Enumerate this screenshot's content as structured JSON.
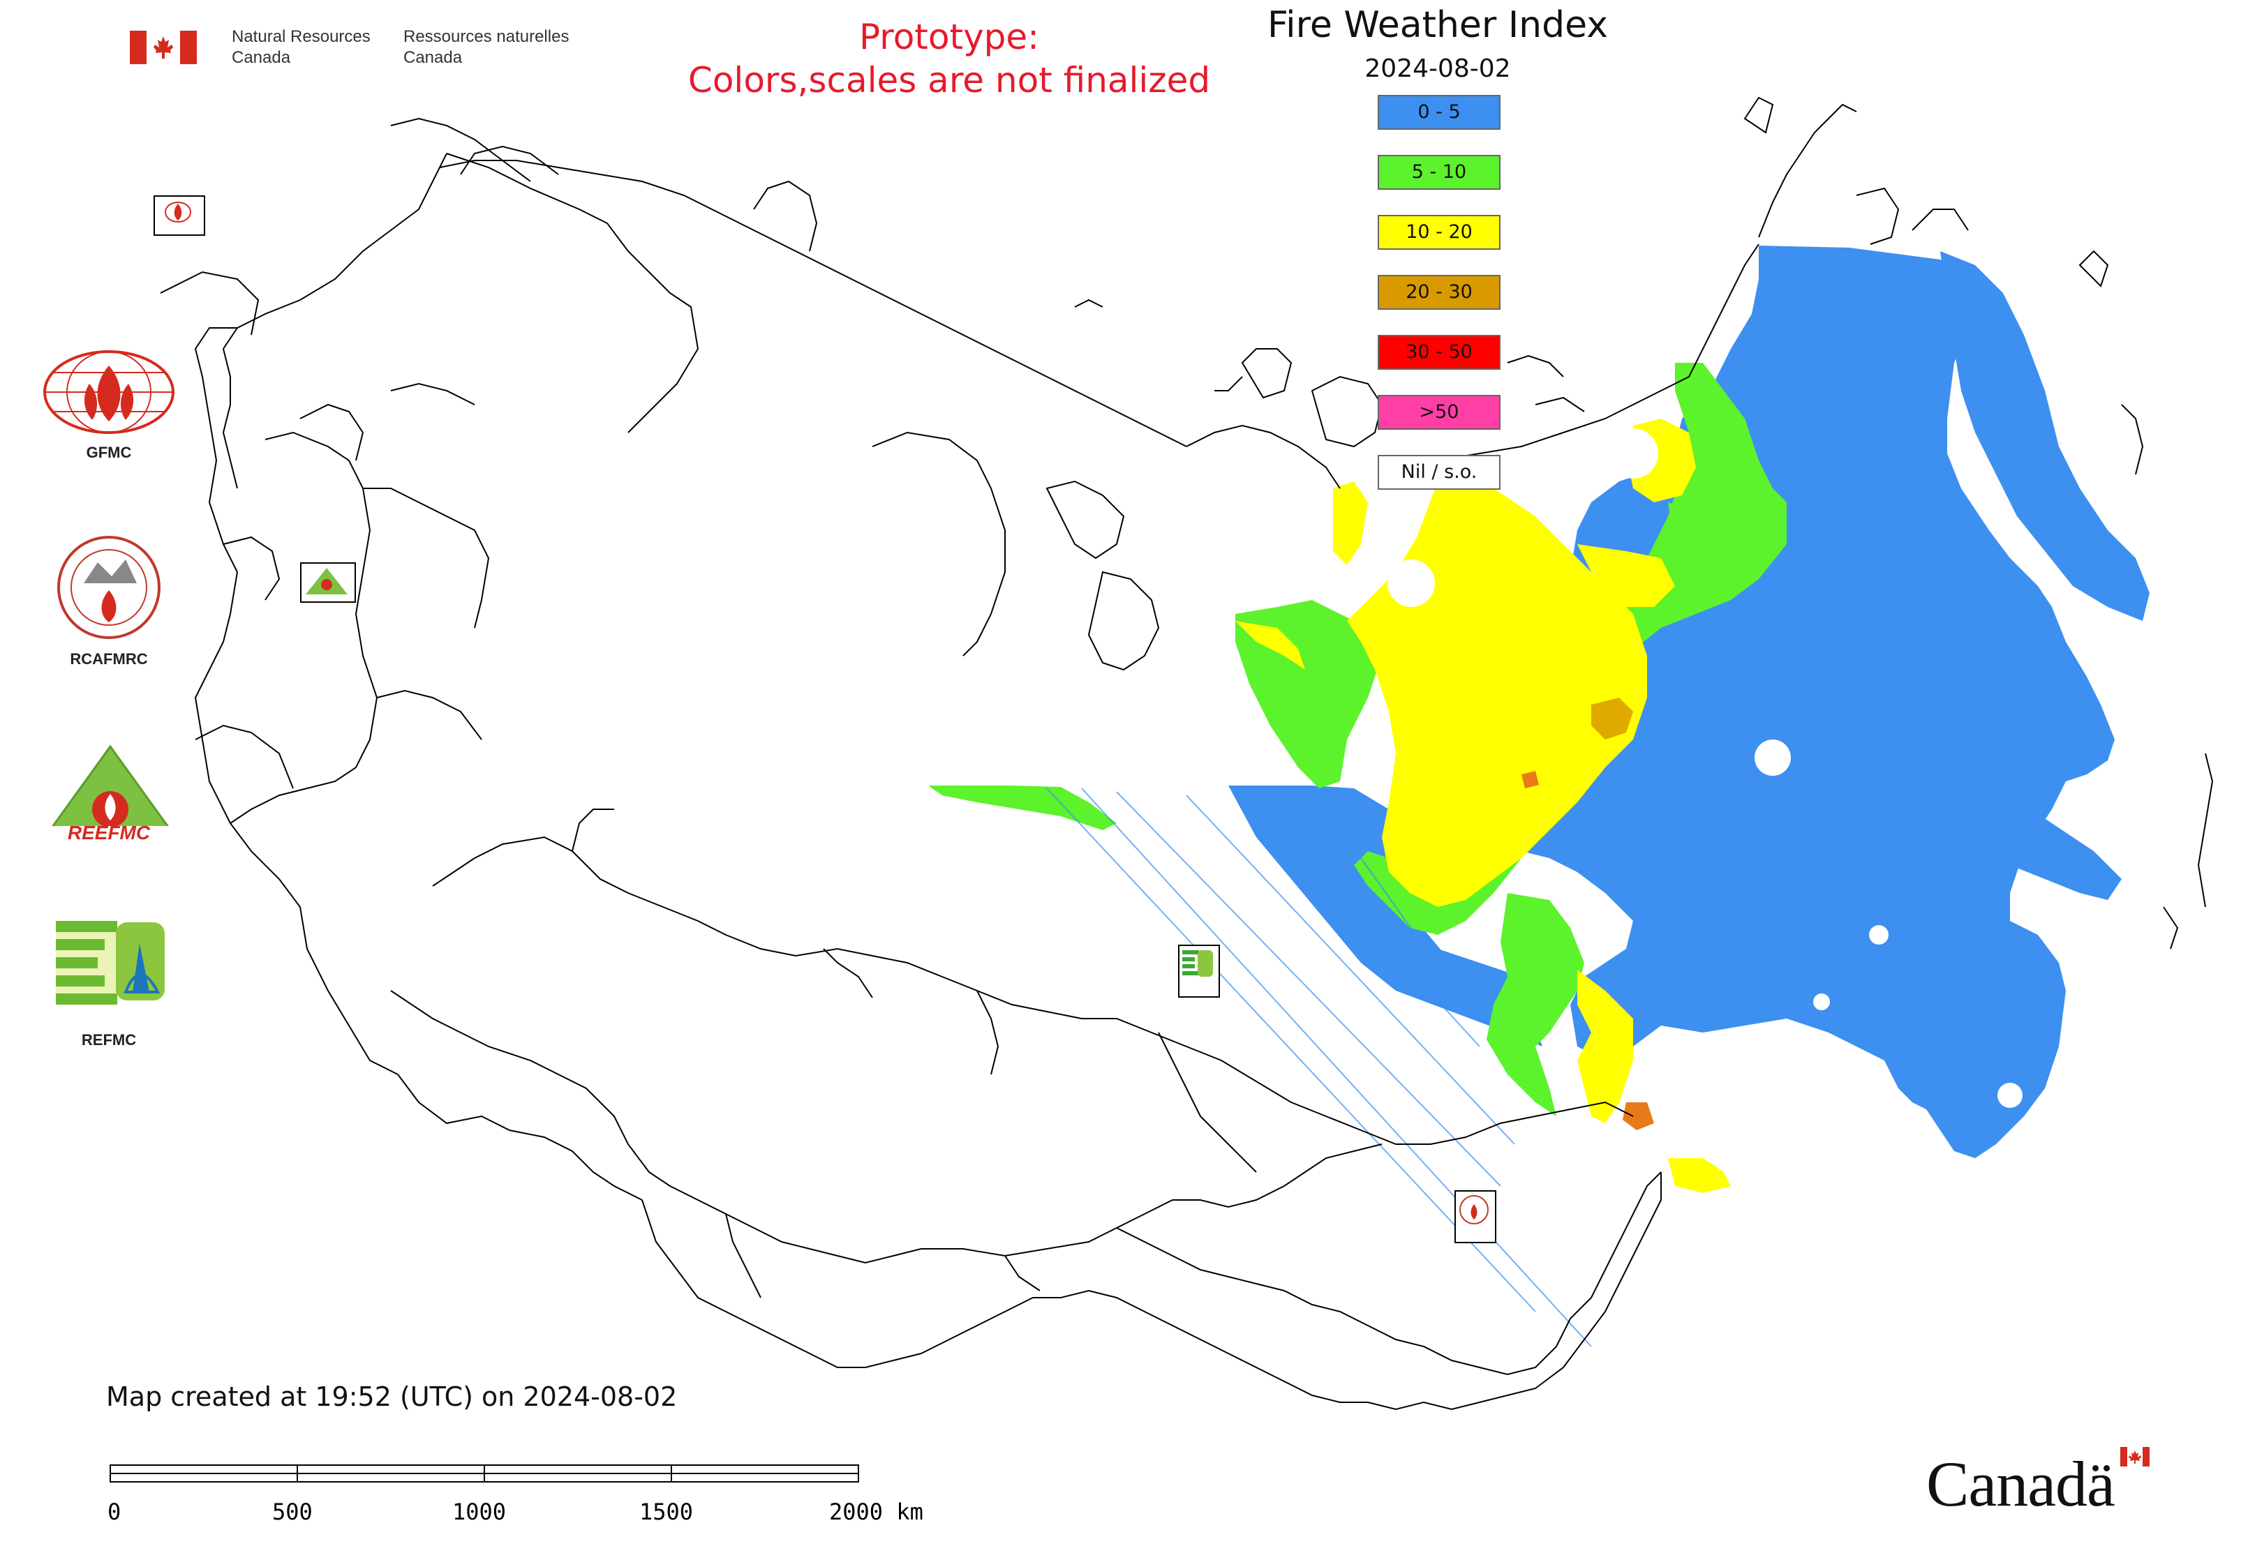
{
  "header": {
    "nrcan_en_line1": "Natural Resources",
    "nrcan_en_line2": "Canada",
    "nrcan_fr_line1": "Ressources naturelles",
    "nrcan_fr_line2": "Canada",
    "flag_color": "#d52b1e"
  },
  "prototype": {
    "line1": "Prototype:",
    "line2": "Colors,scales are not finalized",
    "color": "#e8192c"
  },
  "legend": {
    "title": "Fire Weather Index",
    "date": "2024-08-02",
    "items": [
      {
        "label": "0 - 5",
        "color": "#3d8ff0"
      },
      {
        "label": "5 - 10",
        "color": "#5cf22c"
      },
      {
        "label": "10 - 20",
        "color": "#ffff00"
      },
      {
        "label": "20 - 30",
        "color": "#d99a00"
      },
      {
        "label": "30 - 50",
        "color": "#ff0000"
      },
      {
        "label": ">50",
        "color": "#ff3fa5"
      },
      {
        "label": "Nil / s.o.",
        "color": "#ffffff"
      }
    ]
  },
  "logos": {
    "gfmc": "GFMC",
    "rcafmrc": "RCAFMRC",
    "reefmc": "REEFMC",
    "refmc": "REFMC"
  },
  "footer": {
    "created": "Map created at 19:52 (UTC) on 2024-08-02",
    "scale_ticks": [
      "0",
      "500",
      "1000",
      "1500",
      "2000 km"
    ],
    "canada": "Canadä"
  }
}
